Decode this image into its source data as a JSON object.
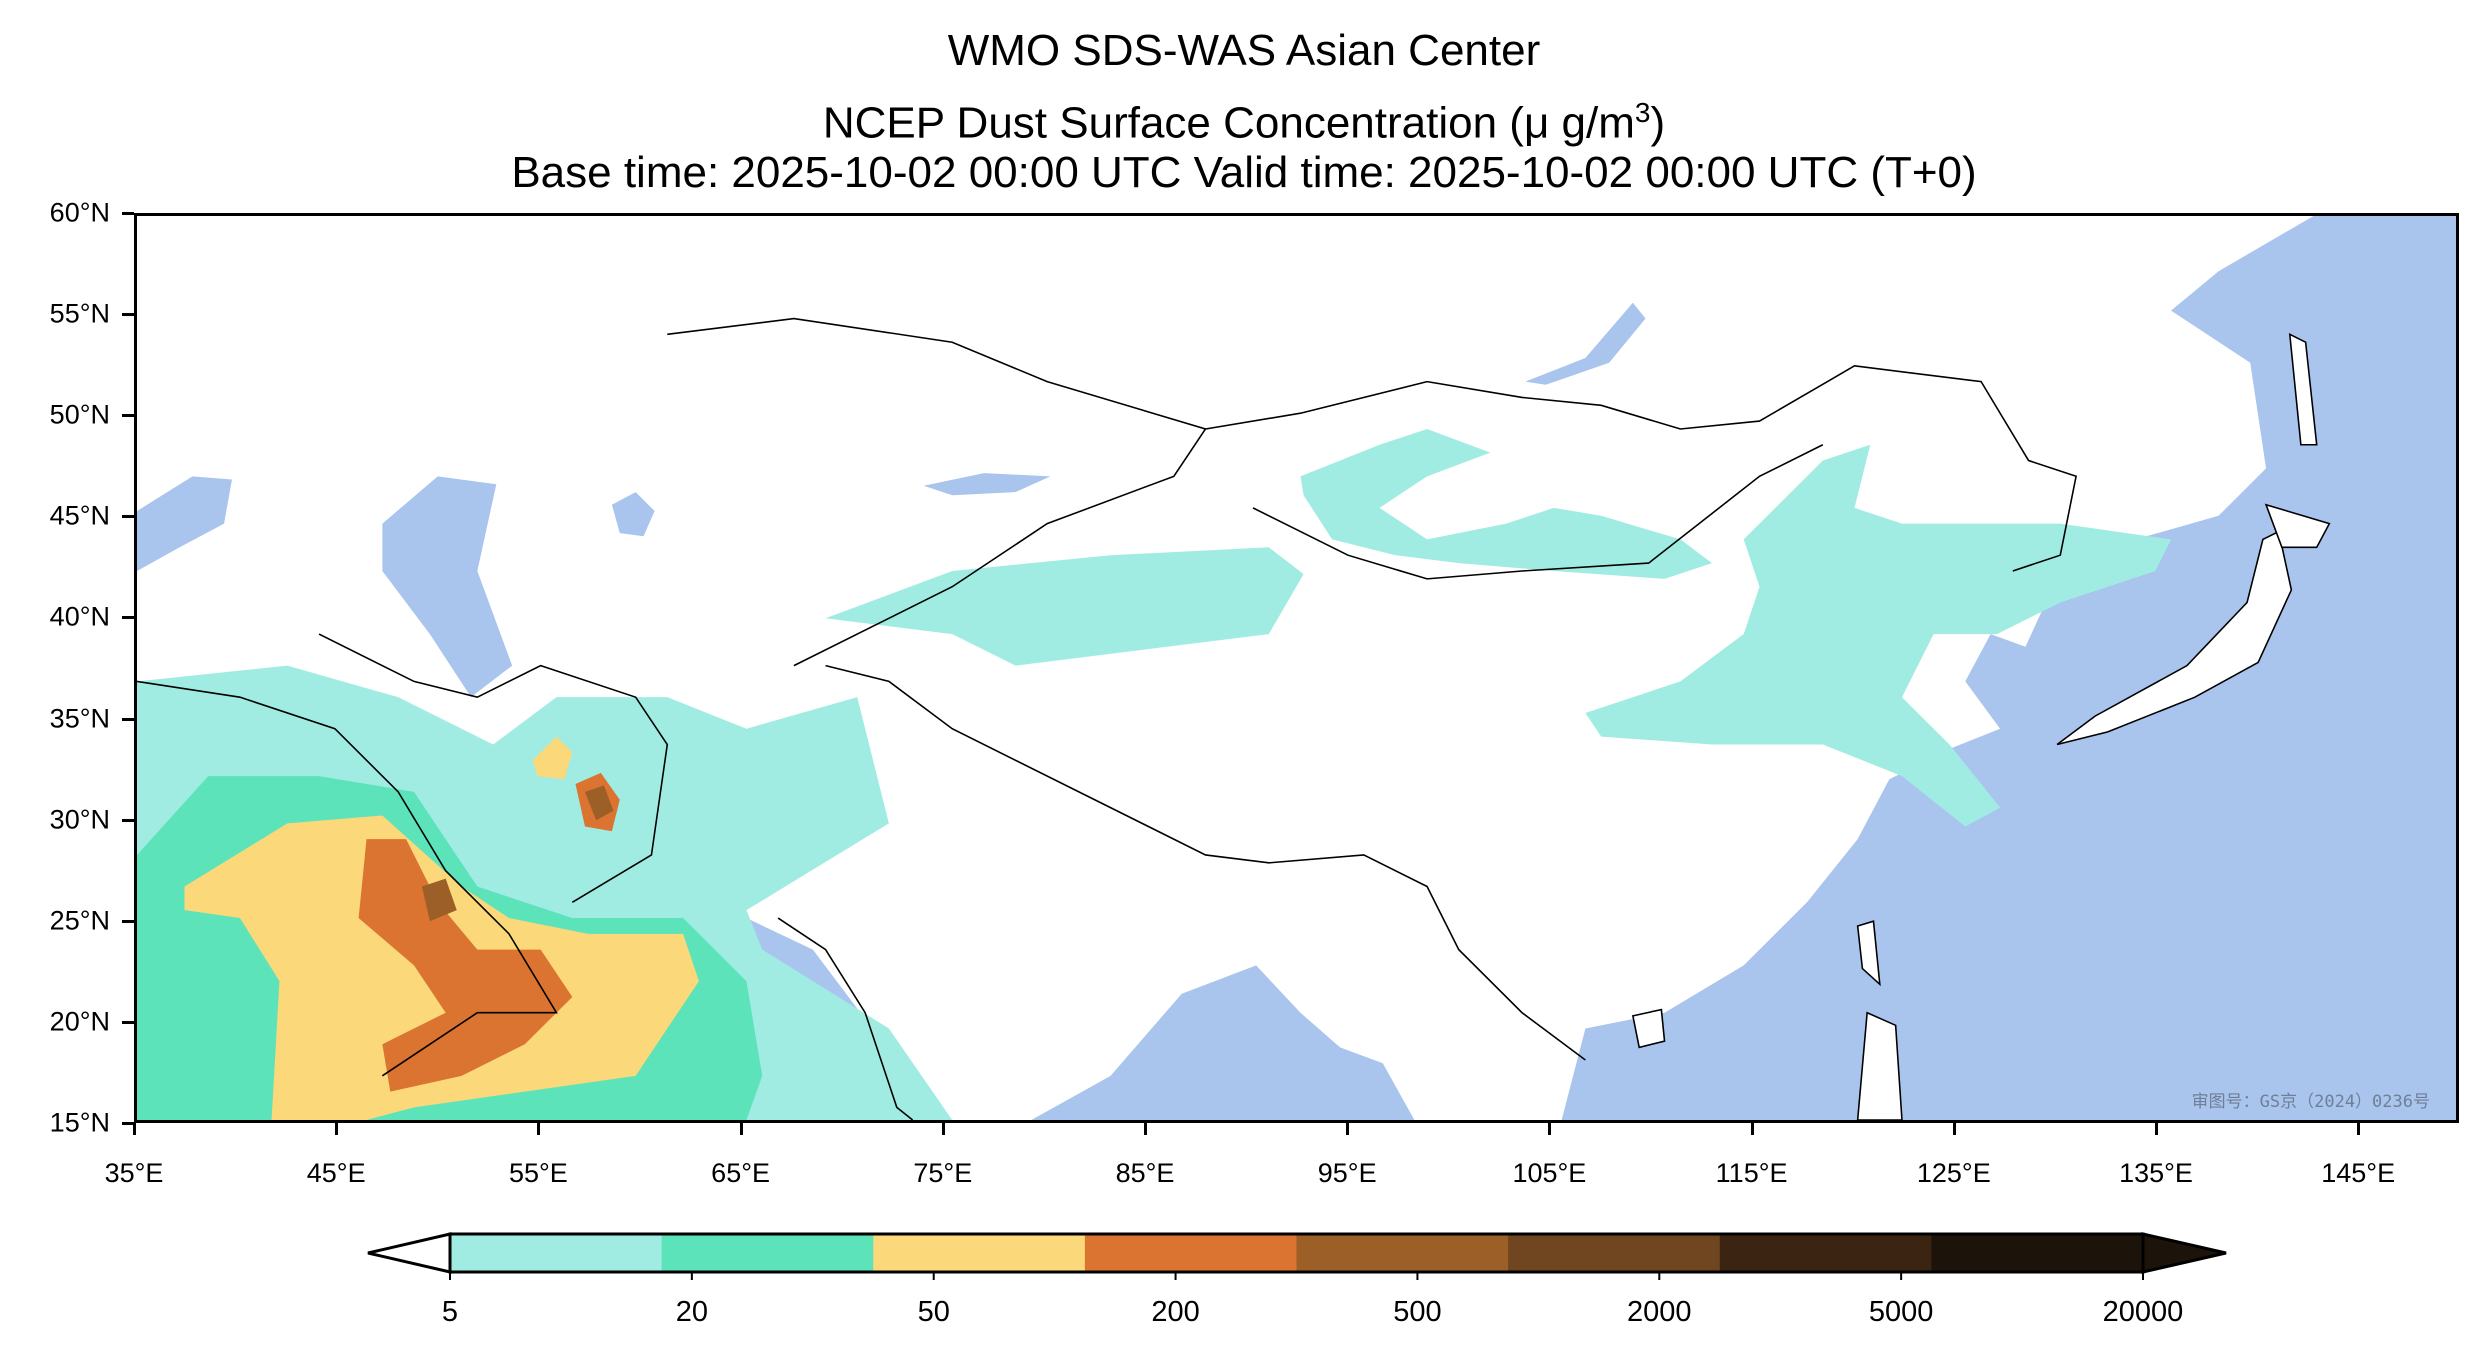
{
  "title": {
    "line1": "WMO SDS-WAS Asian Center",
    "line2_prefix": "NCEP Dust Surface Concentration (",
    "line2_unit": "μ g/m",
    "line2_sup": "3",
    "line2_suffix": ")",
    "line3": "Base time: 2025-10-02 00:00 UTC Valid time: 2025-10-02 00:00 UTC (T+0)"
  },
  "map": {
    "lat_labels": [
      "60°N",
      "55°N",
      "50°N",
      "45°N",
      "40°N",
      "35°N",
      "30°N",
      "25°N",
      "20°N",
      "15°N"
    ],
    "lon_labels": [
      "35°E",
      "45°E",
      "55°E",
      "65°E",
      "75°E",
      "85°E",
      "95°E",
      "105°E",
      "115°E",
      "125°E",
      "135°E",
      "145°E"
    ],
    "watermark": "审图号：GS京（2024）0236号",
    "colors": {
      "ocean": "#a9c5ee",
      "land": "#ffffff",
      "border": "#000000",
      "river": "#a9c5ee"
    }
  },
  "colorbar": {
    "ticks": [
      "5",
      "20",
      "50",
      "200",
      "500",
      "2000",
      "5000",
      "20000"
    ],
    "colors": [
      "#a1ece2",
      "#5ce3b9",
      "#fbd879",
      "#db7331",
      "#9d5f28",
      "#6f461f",
      "#3b2512",
      "#1c130a"
    ],
    "under_color": "#ffffff",
    "over_color": "#1c130a"
  }
}
